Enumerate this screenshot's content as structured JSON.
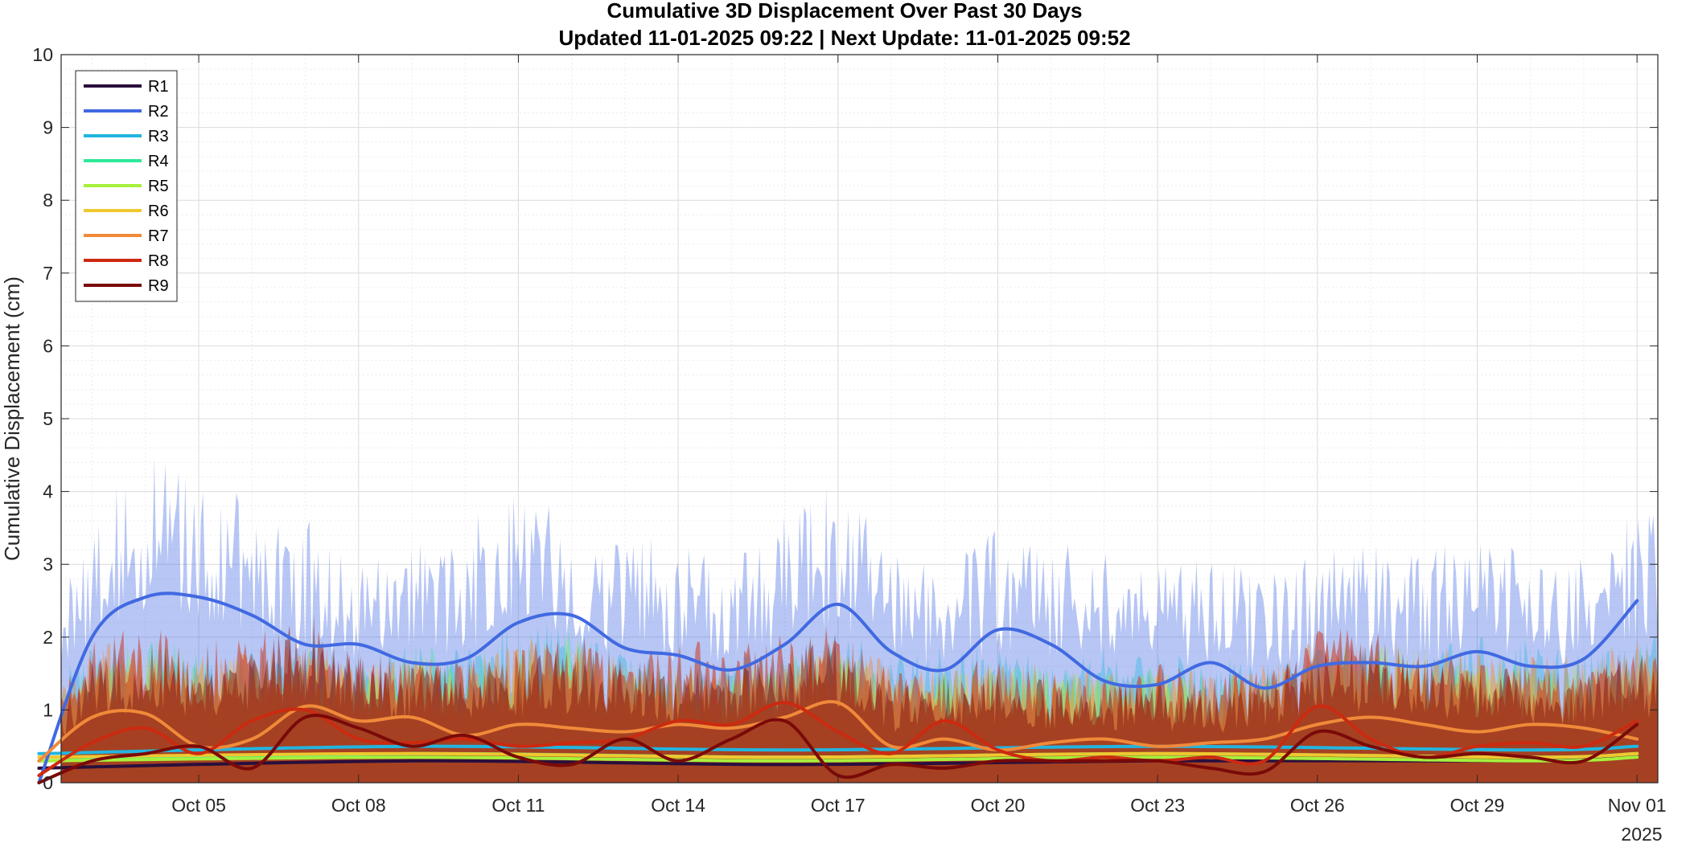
{
  "chart_data": {
    "type": "area",
    "title": "Cumulative 3D Displacement Over Past 30 Days",
    "subtitle": "Updated 11-01-2025 09:22  |  Next Update: 11-01-2025 09:52",
    "xlabel": "",
    "ylabel": "Cumulative Displacement (cm)",
    "x_range": [
      "2025-10-02T10:00",
      "2025-11-01T09:22"
    ],
    "ylim": [
      0,
      10
    ],
    "y_ticks": [
      0,
      1,
      2,
      3,
      4,
      5,
      6,
      7,
      8,
      9,
      10
    ],
    "x_tick_labels": [
      "Oct 05",
      "Oct 08",
      "Oct 11",
      "Oct 14",
      "Oct 17",
      "Oct 20",
      "Oct 23",
      "Oct 26",
      "Oct 29",
      "Nov 01"
    ],
    "x_tick_dates": [
      "2025-10-05",
      "2025-10-08",
      "2025-10-11",
      "2025-10-14",
      "2025-10-17",
      "2025-10-20",
      "2025-10-23",
      "2025-10-26",
      "2025-10-29",
      "2025-11-01"
    ],
    "x_year_label": "2025",
    "grid": true,
    "minor_grid": true,
    "legend_position": "top-left",
    "band_x": [
      "2025-10-02",
      "2025-10-03",
      "2025-10-04",
      "2025-10-05",
      "2025-10-06",
      "2025-10-07",
      "2025-10-08",
      "2025-10-09",
      "2025-10-10",
      "2025-10-11",
      "2025-10-12",
      "2025-10-13",
      "2025-10-14",
      "2025-10-15",
      "2025-10-16",
      "2025-10-17",
      "2025-10-18",
      "2025-10-19",
      "2025-10-20",
      "2025-10-21",
      "2025-10-22",
      "2025-10-23",
      "2025-10-24",
      "2025-10-25",
      "2025-10-26",
      "2025-10-27",
      "2025-10-28",
      "2025-10-29",
      "2025-10-30",
      "2025-10-31",
      "2025-11-01"
    ],
    "series": [
      {
        "name": "R1",
        "color": "#2a0f3c",
        "x": [
          "2025-10-02",
          "2025-10-09",
          "2025-10-16",
          "2025-10-23",
          "2025-10-30",
          "2025-11-01"
        ],
        "values": [
          0.2,
          0.3,
          0.25,
          0.3,
          0.3,
          0.35
        ],
        "band": []
      },
      {
        "name": "R2",
        "color": "#4169e1",
        "x": [
          "2025-10-02",
          "2025-10-03",
          "2025-10-04",
          "2025-10-05",
          "2025-10-06",
          "2025-10-07",
          "2025-10-08",
          "2025-10-09",
          "2025-10-10",
          "2025-10-11",
          "2025-10-12",
          "2025-10-13",
          "2025-10-14",
          "2025-10-15",
          "2025-10-16",
          "2025-10-17",
          "2025-10-18",
          "2025-10-19",
          "2025-10-20",
          "2025-10-21",
          "2025-10-22",
          "2025-10-23",
          "2025-10-24",
          "2025-10-25",
          "2025-10-26",
          "2025-10-27",
          "2025-10-28",
          "2025-10-29",
          "2025-10-30",
          "2025-10-31",
          "2025-11-01"
        ],
        "values": [
          0.0,
          2.0,
          2.55,
          2.55,
          2.3,
          1.9,
          1.9,
          1.65,
          1.7,
          2.2,
          2.3,
          1.85,
          1.75,
          1.55,
          1.9,
          2.45,
          1.8,
          1.55,
          2.1,
          1.9,
          1.4,
          1.35,
          1.65,
          1.3,
          1.6,
          1.65,
          1.6,
          1.8,
          1.6,
          1.7,
          2.5
        ],
        "band": [
          1.6,
          3.4,
          4.1,
          3.9,
          3.5,
          3.3,
          3.0,
          3.1,
          3.2,
          4.0,
          3.3,
          3.2,
          3.0,
          2.8,
          3.4,
          3.8,
          2.9,
          2.7,
          3.3,
          3.1,
          2.9,
          2.7,
          3.0,
          2.6,
          3.0,
          3.1,
          2.9,
          3.1,
          2.9,
          3.0,
          3.5
        ],
        "band_opacity": 0.38
      },
      {
        "name": "R3",
        "color": "#22b5e0",
        "x": [
          "2025-10-02",
          "2025-10-09",
          "2025-10-16",
          "2025-10-23",
          "2025-10-30",
          "2025-11-01"
        ],
        "values": [
          0.4,
          0.5,
          0.45,
          0.5,
          0.45,
          0.5
        ],
        "band": [
          1.1,
          1.8,
          1.7,
          1.7,
          1.8,
          1.9,
          1.6,
          1.8,
          1.7,
          2.2,
          1.9,
          1.7,
          1.6,
          1.6,
          1.7,
          2.0,
          1.6,
          1.8,
          1.7,
          1.6,
          1.7,
          1.6,
          1.6,
          1.5,
          1.7,
          1.8,
          1.7,
          1.9,
          1.8,
          1.7,
          1.9
        ],
        "band_opacity": 0.35
      },
      {
        "name": "R4",
        "color": "#2ee89a",
        "x": [
          "2025-10-02",
          "2025-10-09",
          "2025-10-16",
          "2025-10-23",
          "2025-10-30",
          "2025-11-01"
        ],
        "values": [
          0.3,
          0.4,
          0.35,
          0.4,
          0.35,
          0.4
        ],
        "band": [
          1.0,
          1.5,
          1.9,
          1.7,
          1.6,
          1.6,
          1.5,
          1.8,
          1.6,
          1.9,
          2.0,
          1.5,
          1.5,
          1.4,
          1.6,
          1.8,
          1.4,
          1.5,
          1.6,
          1.5,
          1.4,
          1.5,
          1.4,
          1.4,
          1.6,
          1.7,
          1.6,
          1.6,
          1.5,
          1.5,
          1.7
        ],
        "band_opacity": 0.32
      },
      {
        "name": "R5",
        "color": "#a6f03c",
        "x": [
          "2025-10-02",
          "2025-10-09",
          "2025-10-16",
          "2025-10-23",
          "2025-10-30",
          "2025-11-01"
        ],
        "values": [
          0.3,
          0.35,
          0.3,
          0.35,
          0.3,
          0.35
        ],
        "band": [
          0.9,
          1.4,
          1.8,
          1.6,
          1.5,
          1.7,
          1.4,
          1.7,
          1.5,
          1.8,
          1.9,
          1.5,
          1.5,
          1.4,
          1.5,
          1.7,
          1.3,
          1.4,
          1.5,
          1.4,
          1.4,
          1.4,
          1.3,
          1.4,
          1.7,
          1.8,
          1.7,
          1.6,
          1.5,
          1.5,
          1.6
        ],
        "band_opacity": 0.32
      },
      {
        "name": "R6",
        "color": "#f0c830",
        "x": [
          "2025-10-02",
          "2025-10-09",
          "2025-10-16",
          "2025-10-23",
          "2025-10-30",
          "2025-11-01"
        ],
        "values": [
          0.35,
          0.4,
          0.35,
          0.4,
          0.35,
          0.4
        ],
        "band": [
          0.9,
          1.5,
          1.6,
          1.5,
          1.6,
          1.7,
          1.5,
          1.6,
          1.4,
          1.7,
          1.6,
          1.5,
          1.4,
          1.3,
          1.5,
          1.7,
          1.4,
          1.4,
          1.5,
          1.4,
          1.3,
          1.4,
          1.3,
          1.4,
          1.6,
          1.6,
          1.5,
          1.5,
          1.4,
          1.5,
          1.6
        ],
        "band_opacity": 0.32
      },
      {
        "name": "R7",
        "color": "#f08a3a",
        "x": [
          "2025-10-02",
          "2025-10-03",
          "2025-10-04",
          "2025-10-05",
          "2025-10-06",
          "2025-10-07",
          "2025-10-08",
          "2025-10-09",
          "2025-10-10",
          "2025-10-11",
          "2025-10-12",
          "2025-10-13",
          "2025-10-14",
          "2025-10-15",
          "2025-10-16",
          "2025-10-17",
          "2025-10-18",
          "2025-10-19",
          "2025-10-20",
          "2025-10-21",
          "2025-10-22",
          "2025-10-23",
          "2025-10-24",
          "2025-10-25",
          "2025-10-26",
          "2025-10-27",
          "2025-10-28",
          "2025-10-29",
          "2025-10-30",
          "2025-10-31",
          "2025-11-01"
        ],
        "values": [
          0.3,
          0.9,
          0.95,
          0.5,
          0.6,
          1.05,
          0.85,
          0.9,
          0.65,
          0.8,
          0.75,
          0.7,
          0.8,
          0.75,
          0.9,
          1.1,
          0.5,
          0.6,
          0.45,
          0.55,
          0.6,
          0.5,
          0.55,
          0.6,
          0.8,
          0.9,
          0.8,
          0.7,
          0.8,
          0.75,
          0.6
        ],
        "band": [
          1.0,
          1.7,
          1.9,
          1.6,
          1.7,
          1.8,
          1.5,
          1.6,
          1.5,
          1.8,
          1.9,
          1.6,
          1.5,
          1.4,
          1.6,
          1.9,
          1.5,
          1.4,
          1.6,
          1.5,
          1.4,
          1.5,
          1.4,
          1.5,
          1.8,
          1.9,
          1.8,
          1.7,
          1.6,
          1.6,
          1.8
        ],
        "band_opacity": 0.45
      },
      {
        "name": "R8",
        "color": "#cc2a10",
        "x": [
          "2025-10-02",
          "2025-10-03",
          "2025-10-04",
          "2025-10-05",
          "2025-10-06",
          "2025-10-07",
          "2025-10-08",
          "2025-10-09",
          "2025-10-10",
          "2025-10-11",
          "2025-10-12",
          "2025-10-13",
          "2025-10-14",
          "2025-10-15",
          "2025-10-16",
          "2025-10-17",
          "2025-10-18",
          "2025-10-19",
          "2025-10-20",
          "2025-10-21",
          "2025-10-22",
          "2025-10-23",
          "2025-10-24",
          "2025-10-25",
          "2025-10-26",
          "2025-10-27",
          "2025-10-28",
          "2025-10-29",
          "2025-10-30",
          "2025-10-31",
          "2025-11-01"
        ],
        "values": [
          0.1,
          0.55,
          0.75,
          0.4,
          0.85,
          1.0,
          0.6,
          0.55,
          0.6,
          0.5,
          0.55,
          0.6,
          0.85,
          0.8,
          1.1,
          0.7,
          0.4,
          0.85,
          0.45,
          0.3,
          0.35,
          0.3,
          0.35,
          0.3,
          1.05,
          0.6,
          0.35,
          0.5,
          0.55,
          0.5,
          0.85
        ],
        "band": [
          1.0,
          1.8,
          2.0,
          1.7,
          2.0,
          2.0,
          1.6,
          1.7,
          1.6,
          1.7,
          1.9,
          1.6,
          1.8,
          1.7,
          1.9,
          2.0,
          1.4,
          1.5,
          1.6,
          1.4,
          1.3,
          1.5,
          1.4,
          1.4,
          2.0,
          1.9,
          1.7,
          1.6,
          1.5,
          1.5,
          1.7
        ],
        "band_opacity": 0.5
      },
      {
        "name": "R9",
        "color": "#7a0a08",
        "x": [
          "2025-10-02",
          "2025-10-03",
          "2025-10-04",
          "2025-10-05",
          "2025-10-06",
          "2025-10-07",
          "2025-10-08",
          "2025-10-09",
          "2025-10-10",
          "2025-10-11",
          "2025-10-12",
          "2025-10-13",
          "2025-10-14",
          "2025-10-15",
          "2025-10-16",
          "2025-10-17",
          "2025-10-18",
          "2025-10-19",
          "2025-10-20",
          "2025-10-21",
          "2025-10-22",
          "2025-10-23",
          "2025-10-24",
          "2025-10-25",
          "2025-10-26",
          "2025-10-27",
          "2025-10-28",
          "2025-10-29",
          "2025-10-30",
          "2025-10-31",
          "2025-11-01"
        ],
        "values": [
          0.0,
          0.3,
          0.4,
          0.5,
          0.2,
          0.9,
          0.75,
          0.5,
          0.65,
          0.35,
          0.25,
          0.6,
          0.3,
          0.6,
          0.85,
          0.1,
          0.25,
          0.2,
          0.3,
          0.3,
          0.3,
          0.3,
          0.2,
          0.15,
          0.7,
          0.5,
          0.35,
          0.4,
          0.35,
          0.3,
          0.8
        ],
        "band": [
          0.8,
          1.5,
          1.8,
          1.5,
          1.6,
          2.2,
          1.6,
          1.5,
          1.5,
          1.6,
          1.7,
          1.6,
          1.5,
          1.5,
          1.7,
          1.9,
          1.2,
          1.3,
          1.4,
          1.3,
          1.2,
          1.3,
          1.2,
          1.3,
          1.8,
          1.7,
          1.6,
          1.5,
          1.4,
          1.4,
          1.6
        ],
        "band_opacity": 0.45
      }
    ]
  }
}
